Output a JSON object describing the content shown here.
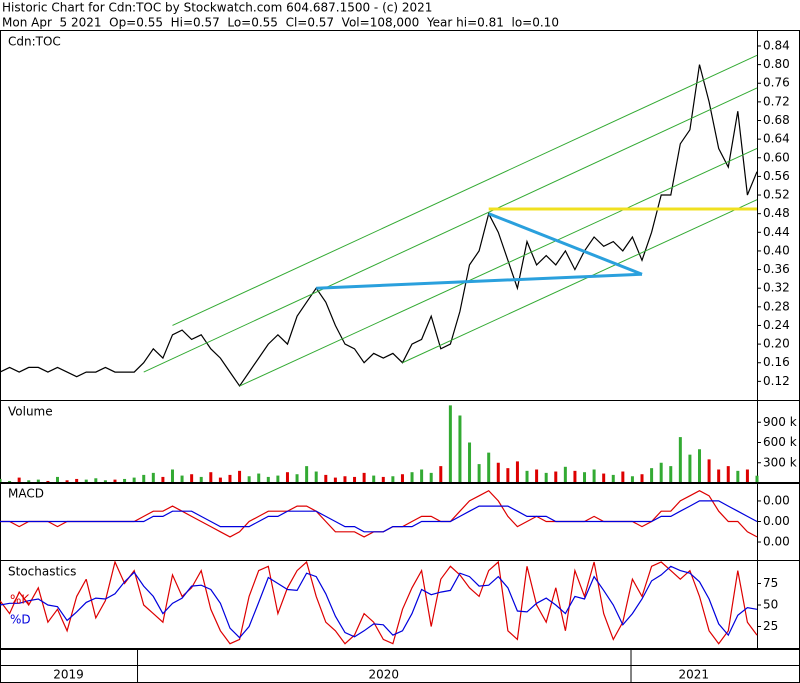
{
  "header": {
    "line1": "Historic Chart for Cdn:TOC by Stockwatch.com 604.687.1500 - (c) 2021",
    "line2": "Mon Apr  5 2021  Op=0.55  Hi=0.57  Lo=0.55  Cl=0.57  Vol=108,000  Year hi=0.81  lo=0.10"
  },
  "chart_data": [
    {
      "type": "line",
      "title": "Cdn:TOC",
      "xlim": [
        0,
        79
      ],
      "xticks": [
        {
          "value": 0,
          "label": "2019"
        },
        {
          "value": 14.3,
          "label": "2020"
        },
        {
          "value": 65.8,
          "label": "2021"
        }
      ],
      "ylim": [
        0.08,
        0.87
      ],
      "yticks": [
        0.84,
        {
          "value": 0.8,
          "label": "0.80"
        },
        0.76,
        0.72,
        0.68,
        0.64,
        {
          "value": 0.6,
          "label": "0.60"
        },
        0.56,
        0.52,
        0.48,
        0.44,
        {
          "value": 0.4,
          "label": "0.40"
        },
        0.36,
        0.32,
        0.28,
        0.24,
        {
          "value": 0.2,
          "label": "0.20"
        },
        0.16,
        0.12
      ],
      "series": [
        {
          "color": "#000000",
          "values": [
            0.14,
            0.15,
            0.14,
            0.15,
            0.15,
            0.14,
            0.15,
            0.14,
            0.13,
            0.14,
            0.14,
            0.15,
            0.14,
            0.14,
            0.14,
            0.16,
            0.19,
            0.17,
            0.22,
            0.23,
            0.21,
            0.22,
            0.19,
            0.17,
            0.14,
            0.11,
            0.14,
            0.17,
            0.2,
            0.22,
            0.2,
            0.26,
            0.29,
            0.32,
            0.29,
            0.24,
            0.2,
            0.19,
            0.16,
            0.18,
            0.17,
            0.18,
            0.16,
            0.2,
            0.21,
            0.26,
            0.19,
            0.2,
            0.27,
            0.37,
            0.4,
            0.48,
            0.44,
            0.38,
            0.32,
            0.42,
            0.37,
            0.39,
            0.37,
            0.4,
            0.36,
            0.4,
            0.43,
            0.41,
            0.42,
            0.4,
            0.43,
            0.38,
            0.44,
            0.52,
            0.52,
            0.63,
            0.66,
            0.8,
            0.72,
            0.62,
            0.58,
            0.7,
            0.52,
            0.57
          ]
        }
      ],
      "trend_lines": [
        {
          "color": "#33aa33",
          "width": 1,
          "points": [
            [
              18,
              0.24
            ],
            [
              79,
              0.82
            ]
          ]
        },
        {
          "color": "#33aa33",
          "width": 1,
          "points": [
            [
              15,
              0.14
            ],
            [
              79,
              0.75
            ]
          ]
        },
        {
          "color": "#33aa33",
          "width": 1,
          "points": [
            [
              25,
              0.11
            ],
            [
              79,
              0.62
            ]
          ]
        },
        {
          "color": "#33aa33",
          "width": 1,
          "points": [
            [
              42,
              0.16
            ],
            [
              79,
              0.51
            ]
          ]
        },
        {
          "color": "#f0e020",
          "width": 3,
          "points": [
            [
              51,
              0.49
            ],
            [
              79,
              0.49
            ]
          ]
        },
        {
          "color": "#2aa0dd",
          "width": 3,
          "points": [
            [
              33,
              0.32
            ],
            [
              67,
              0.35
            ]
          ]
        },
        {
          "color": "#2aa0dd",
          "width": 3,
          "points": [
            [
              51,
              0.48
            ],
            [
              67,
              0.35
            ]
          ]
        }
      ]
    },
    {
      "type": "bar",
      "title": "Volume",
      "up_color": "#33aa33",
      "down_color": "#dd0000",
      "ylim": [
        0,
        1200000
      ],
      "yticks": [
        {
          "value": 900000,
          "label": "900 k"
        },
        {
          "value": 600000,
          "label": "600 k"
        },
        {
          "value": 300000,
          "label": "300 k"
        }
      ],
      "values": [
        60000,
        30000,
        80000,
        40000,
        50000,
        30000,
        90000,
        40000,
        60000,
        50000,
        70000,
        40000,
        50000,
        60000,
        80000,
        120000,
        150000,
        90000,
        200000,
        110000,
        130000,
        90000,
        160000,
        80000,
        120000,
        180000,
        100000,
        140000,
        90000,
        110000,
        160000,
        130000,
        250000,
        170000,
        120000,
        80000,
        100000,
        90000,
        150000,
        110000,
        90000,
        100000,
        130000,
        160000,
        200000,
        150000,
        250000,
        1150000,
        1000000,
        600000,
        280000,
        450000,
        300000,
        220000,
        320000,
        180000,
        200000,
        150000,
        170000,
        240000,
        180000,
        160000,
        200000,
        140000,
        120000,
        170000,
        100000,
        130000,
        220000,
        300000,
        250000,
        680000,
        420000,
        500000,
        350000,
        200000,
        250000,
        180000,
        200000,
        108000
      ]
    },
    {
      "type": "line",
      "title": "MACD",
      "ylim": [
        -0.0075,
        0.0073
      ],
      "yticks": [
        {
          "value": 0.004,
          "label": "0.00"
        },
        {
          "value": 0,
          "label": "0.00"
        },
        {
          "value": -0.004,
          "label": "0.00"
        }
      ],
      "series": [
        {
          "color": "#dd0000",
          "values": [
            0,
            0,
            -0.001,
            0,
            0,
            0,
            -0.001,
            0,
            0,
            0,
            0,
            0,
            0,
            0,
            0,
            0.001,
            0.002,
            0.002,
            0.003,
            0.002,
            0.001,
            0,
            -0.001,
            -0.002,
            -0.003,
            -0.002,
            0,
            0.001,
            0.002,
            0.002,
            0.002,
            0.003,
            0.003,
            0.002,
            0,
            -0.002,
            -0.002,
            -0.002,
            -0.003,
            -0.002,
            -0.002,
            -0.001,
            -0.001,
            0,
            0.001,
            0.001,
            0,
            0,
            0.002,
            0.004,
            0.005,
            0.006,
            0.004,
            0.001,
            -0.001,
            0,
            0.001,
            0,
            0,
            0,
            0,
            0,
            0.001,
            0,
            0,
            0,
            0,
            -0.001,
            0,
            0.002,
            0.002,
            0.004,
            0.005,
            0.006,
            0.005,
            0.002,
            0,
            0,
            -0.002,
            -0.003
          ]
        },
        {
          "color": "#0000dd",
          "values": [
            0,
            0,
            0,
            0,
            0,
            0,
            0,
            0,
            0,
            0,
            0,
            0,
            0,
            0,
            0,
            0,
            0.001,
            0.001,
            0.002,
            0.002,
            0.002,
            0.001,
            0,
            -0.001,
            -0.001,
            -0.001,
            -0.001,
            0,
            0.001,
            0.001,
            0.002,
            0.002,
            0.002,
            0.002,
            0.001,
            0,
            -0.001,
            -0.001,
            -0.002,
            -0.002,
            -0.002,
            -0.001,
            -0.001,
            -0.001,
            0,
            0,
            0,
            0,
            0.001,
            0.002,
            0.003,
            0.003,
            0.003,
            0.003,
            0.002,
            0.001,
            0.001,
            0.001,
            0,
            0,
            0,
            0,
            0,
            0,
            0,
            0,
            0,
            0,
            0,
            0.001,
            0.001,
            0.002,
            0.003,
            0.004,
            0.004,
            0.004,
            0.003,
            0.002,
            0.001,
            0
          ]
        }
      ]
    },
    {
      "type": "line",
      "title": "Stochastics",
      "ylim": [
        0,
        100
      ],
      "yticks": [
        75,
        50,
        25
      ],
      "series": [
        {
          "name": "%K",
          "color": "#dd0000",
          "values": [
            55,
            40,
            65,
            50,
            70,
            30,
            45,
            20,
            60,
            80,
            35,
            55,
            100,
            75,
            90,
            50,
            40,
            30,
            85,
            60,
            70,
            90,
            45,
            20,
            5,
            10,
            60,
            90,
            95,
            40,
            70,
            90,
            100,
            60,
            30,
            20,
            5,
            15,
            40,
            30,
            10,
            5,
            45,
            70,
            90,
            25,
            80,
            95,
            85,
            70,
            60,
            90,
            100,
            20,
            10,
            95,
            50,
            30,
            70,
            20,
            90,
            60,
            100,
            40,
            10,
            30,
            80,
            60,
            95,
            100,
            90,
            80,
            90,
            60,
            20,
            5,
            20,
            90,
            30,
            15
          ]
        },
        {
          "name": "%D",
          "color": "#0000dd",
          "values": [
            50,
            52,
            52,
            55,
            57,
            50,
            48,
            32,
            42,
            53,
            58,
            57,
            63,
            77,
            88,
            72,
            60,
            40,
            52,
            58,
            72,
            73,
            68,
            52,
            23,
            12,
            25,
            53,
            82,
            75,
            68,
            67,
            87,
            83,
            63,
            37,
            18,
            13,
            20,
            28,
            27,
            15,
            20,
            40,
            68,
            62,
            65,
            67,
            87,
            83,
            72,
            73,
            83,
            70,
            43,
            42,
            52,
            58,
            50,
            40,
            60,
            57,
            83,
            67,
            50,
            27,
            40,
            57,
            78,
            85,
            95,
            90,
            87,
            77,
            57,
            28,
            15,
            38,
            47,
            45
          ]
        }
      ]
    }
  ]
}
